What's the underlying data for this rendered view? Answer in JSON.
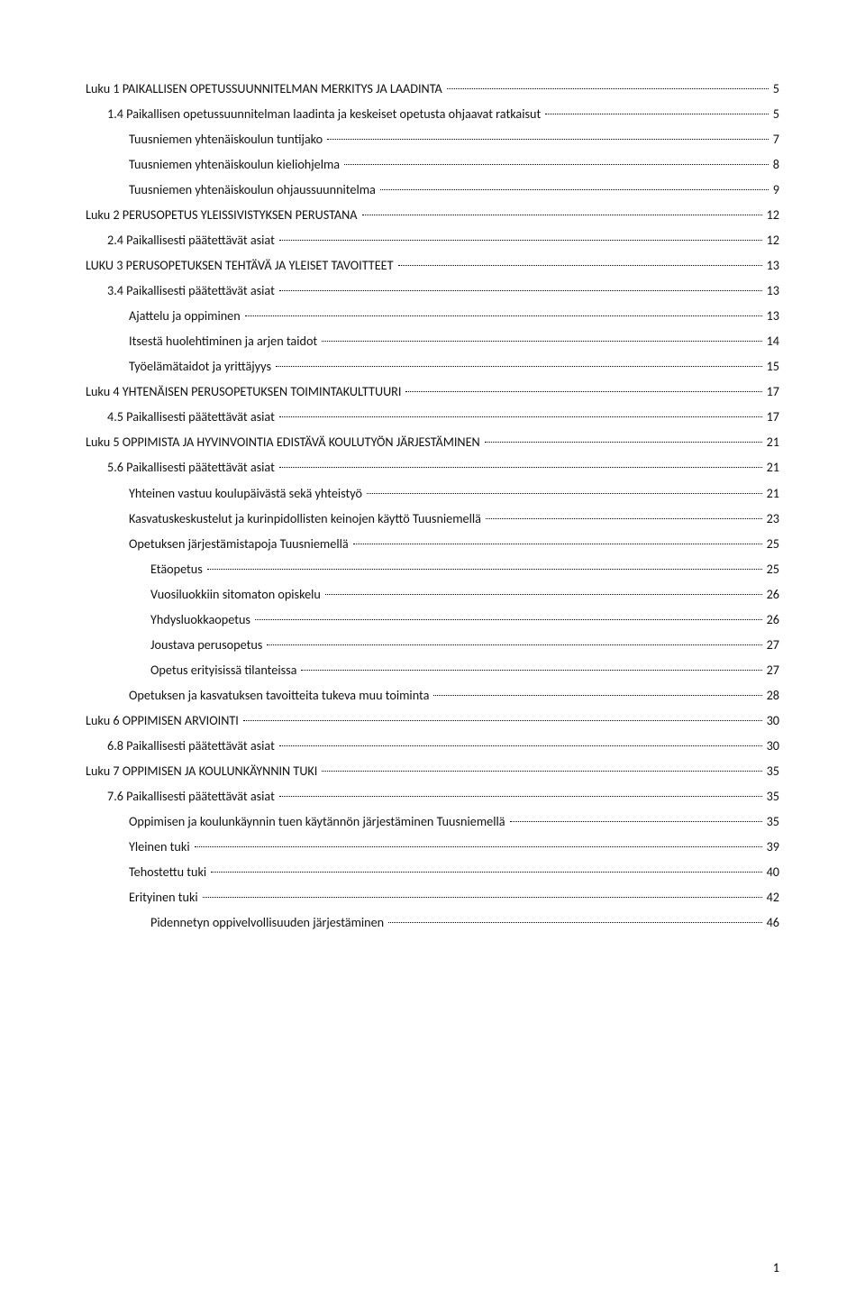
{
  "toc": [
    {
      "level": 1,
      "label": "Luku 1 PAIKALLISEN OPETUSSUUNNITELMAN MERKITYS JA LAADINTA",
      "page": "5"
    },
    {
      "level": 2,
      "label": "1.4 Paikallisen opetussuunnitelman laadinta ja keskeiset opetusta ohjaavat ratkaisut",
      "page": "5"
    },
    {
      "level": 3,
      "label": "Tuusniemen yhtenäiskoulun tuntijako",
      "page": "7"
    },
    {
      "level": 3,
      "label": "Tuusniemen yhtenäiskoulun kieliohjelma",
      "page": "8"
    },
    {
      "level": 3,
      "label": "Tuusniemen yhtenäiskoulun ohjaussuunnitelma",
      "page": "9"
    },
    {
      "level": 1,
      "label": "Luku 2 PERUSOPETUS YLEISSIVISTYKSEN PERUSTANA",
      "page": "12"
    },
    {
      "level": 2,
      "label": "2.4 Paikallisesti päätettävät asiat",
      "page": "12"
    },
    {
      "level": 1,
      "label": "LUKU 3 PERUSOPETUKSEN TEHTÄVÄ JA YLEISET TAVOITTEET",
      "page": "13"
    },
    {
      "level": 2,
      "label": "3.4 Paikallisesti päätettävät asiat",
      "page": "13"
    },
    {
      "level": 3,
      "label": "Ajattelu ja oppiminen",
      "page": "13"
    },
    {
      "level": 3,
      "label": "Itsestä huolehtiminen ja arjen taidot",
      "page": "14"
    },
    {
      "level": 3,
      "label": "Työelämätaidot ja yrittäjyys",
      "page": "15"
    },
    {
      "level": 1,
      "label": "Luku 4 YHTENÄISEN PERUSOPETUKSEN TOIMINTAKULTTUURI",
      "page": "17"
    },
    {
      "level": 2,
      "label": "4.5 Paikallisesti päätettävät asiat",
      "page": "17"
    },
    {
      "level": 1,
      "label": "Luku 5 OPPIMISTA JA HYVINVOINTIA EDISTÄVÄ KOULUTYÖN JÄRJESTÄMINEN",
      "page": "21"
    },
    {
      "level": 2,
      "label": "5.6 Paikallisesti päätettävät asiat",
      "page": "21"
    },
    {
      "level": 3,
      "label": "Yhteinen vastuu koulupäivästä sekä yhteistyö",
      "page": "21"
    },
    {
      "level": 3,
      "label": "Kasvatuskeskustelut ja kurinpidollisten keinojen käyttö Tuusniemellä",
      "page": "23"
    },
    {
      "level": 3,
      "label": "Opetuksen järjestämistapoja Tuusniemellä",
      "page": "25"
    },
    {
      "level": 4,
      "label": "Etäopetus",
      "page": "25"
    },
    {
      "level": 4,
      "label": "Vuosiluokkiin sitomaton opiskelu",
      "page": "26"
    },
    {
      "level": 4,
      "label": "Yhdysluokkaopetus",
      "page": "26"
    },
    {
      "level": 4,
      "label": "Joustava perusopetus",
      "page": "27"
    },
    {
      "level": 4,
      "label": "Opetus erityisissä tilanteissa",
      "page": "27"
    },
    {
      "level": 3,
      "label": "Opetuksen ja kasvatuksen tavoitteita tukeva muu toiminta",
      "page": "28"
    },
    {
      "level": 1,
      "label": "Luku 6 OPPIMISEN ARVIOINTI",
      "page": "30"
    },
    {
      "level": 2,
      "label": "6.8 Paikallisesti päätettävät asiat",
      "page": "30"
    },
    {
      "level": 1,
      "label": "Luku 7 OPPIMISEN JA KOULUNKÄYNNIN TUKI",
      "page": "35"
    },
    {
      "level": 2,
      "label": "7.6 Paikallisesti päätettävät asiat",
      "page": "35"
    },
    {
      "level": 3,
      "label": "Oppimisen ja koulunkäynnin tuen käytännön järjestäminen Tuusniemellä",
      "page": "35"
    },
    {
      "level": 3,
      "label": "Yleinen tuki",
      "page": "39"
    },
    {
      "level": 3,
      "label": "Tehostettu tuki",
      "page": "40"
    },
    {
      "level": 3,
      "label": "Erityinen tuki",
      "page": "42"
    },
    {
      "level": 4,
      "label": "Pidennetyn oppivelvollisuuden järjestäminen",
      "page": "46"
    }
  ],
  "page_number": "1"
}
